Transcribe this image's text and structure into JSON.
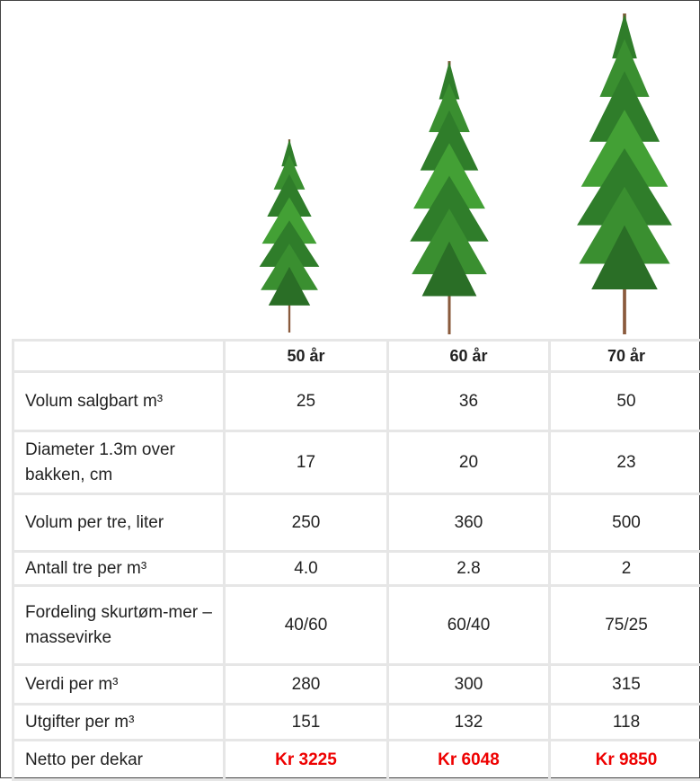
{
  "table": {
    "header": [
      "50 år",
      "60 år",
      "70 år"
    ],
    "rows": [
      [
        "Volum salgbart m³",
        "25",
        "36",
        "50"
      ],
      [
        "Diameter 1.3m over bakken, cm",
        "17",
        "20",
        "23"
      ],
      [
        "Volum per tre, liter",
        "250",
        "360",
        "500"
      ],
      [
        "Antall tre per m³",
        "4.0",
        "2.8",
        "2"
      ],
      [
        "Fordeling skurtøm-mer – massevirke",
        "40/60",
        "60/40",
        "75/25"
      ],
      [
        "Verdi per m³",
        "280",
        "300",
        "315"
      ],
      [
        "Utgifter per m³",
        "151",
        "132",
        "118"
      ],
      [
        "Netto per dekar",
        "Kr 3225",
        "Kr 6048",
        "Kr 9850"
      ]
    ]
  }
}
